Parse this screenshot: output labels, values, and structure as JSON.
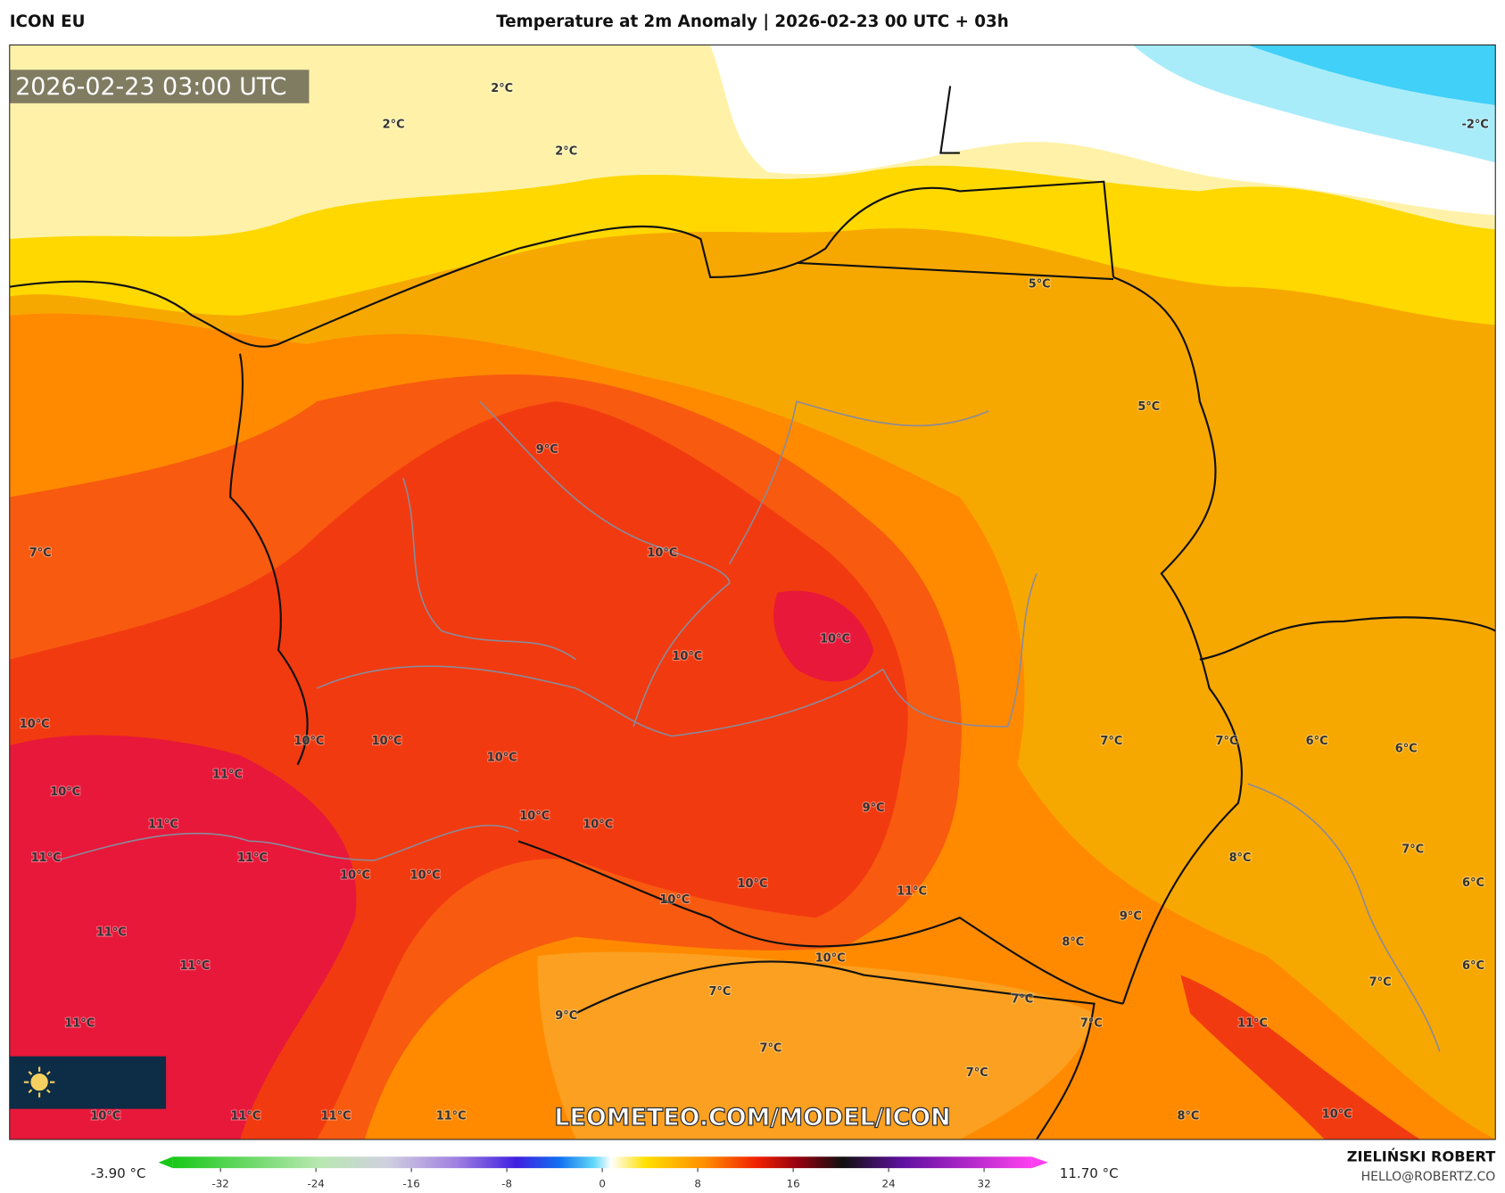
{
  "header": {
    "model": "ICON EU",
    "title": "Temperature at 2m Anomaly | 2026-02-23 00 UTC + 03h"
  },
  "map": {
    "timestamp": "2026-02-23 03:00 UTC",
    "watermark": "LEOMETEO.COM/MODEL/ICON",
    "labels": [
      "2°C",
      "2°C",
      "2°C",
      "-2°C",
      "5°C",
      "5°C",
      "9°C",
      "7°C",
      "10°C",
      "10°C",
      "10°C",
      "10°C",
      "10°C",
      "10°C",
      "7°C",
      "7°C",
      "6°C",
      "6°C",
      "11°C",
      "10°C",
      "10°C",
      "9°C",
      "11°C",
      "10°C",
      "10°C",
      "11°C",
      "11°C",
      "10°C",
      "10°C",
      "7°C",
      "8°C",
      "10°C",
      "11°C",
      "10°C",
      "6°C",
      "11°C",
      "9°C",
      "8°C",
      "11°C",
      "10°C",
      "6°C",
      "7°C",
      "7°C",
      "7°C",
      "9°C",
      "11°C",
      "7°C",
      "11°C",
      "7°C",
      "7°C",
      "10°C",
      "11°C",
      "11°C",
      "11°C",
      "8°C",
      "10°C"
    ]
  },
  "colorbar": {
    "min_label": "-3.90 °C",
    "max_label": "11.70 °C",
    "lim": [
      -36,
      36
    ],
    "ticks": [
      -32,
      -24,
      -16,
      -8,
      0,
      8,
      16,
      24,
      32
    ]
  },
  "footer": {
    "author": "ZIELIŃSKI ROBERT",
    "contact": "HELLO@ROBERTZ.CO"
  }
}
